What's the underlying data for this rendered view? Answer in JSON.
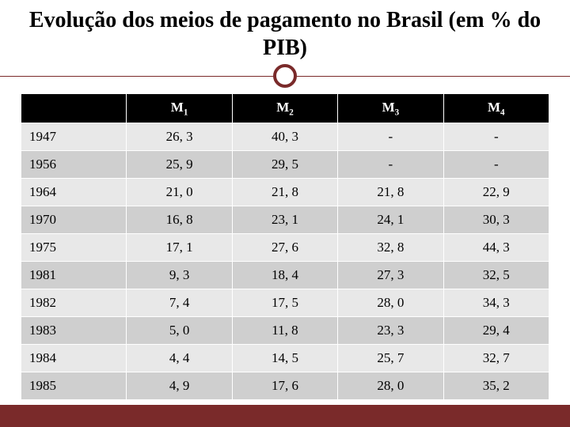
{
  "title": "Evolução dos meios de pagamento no Brasil (em % do PIB)",
  "table": {
    "type": "table",
    "columns": [
      "",
      "M1",
      "M2",
      "M3",
      "M4"
    ],
    "column_subscripts": [
      "",
      "1",
      "2",
      "3",
      "4"
    ],
    "column_prefix": [
      "",
      "M",
      "M",
      "M",
      "M"
    ],
    "col_widths_pct": [
      20,
      20,
      20,
      20,
      20
    ],
    "header_bg": "#000000",
    "header_fg": "#ffffff",
    "row_bg_odd": "#e8e8e8",
    "row_bg_even": "#cfcfcf",
    "border_color": "#ffffff",
    "font_family": "Georgia",
    "cell_fontsize_pt": 13,
    "rows": [
      {
        "year": "1947",
        "m1": "26, 3",
        "m2": "40, 3",
        "m3": "-",
        "m4": "-"
      },
      {
        "year": "1956",
        "m1": "25, 9",
        "m2": "29, 5",
        "m3": "-",
        "m4": "-"
      },
      {
        "year": "1964",
        "m1": "21, 0",
        "m2": "21, 8",
        "m3": "21, 8",
        "m4": "22, 9"
      },
      {
        "year": "1970",
        "m1": "16, 8",
        "m2": "23, 1",
        "m3": "24, 1",
        "m4": "30, 3"
      },
      {
        "year": "1975",
        "m1": "17, 1",
        "m2": "27, 6",
        "m3": "32, 8",
        "m4": "44, 3"
      },
      {
        "year": "1981",
        "m1": "9, 3",
        "m2": "18, 4",
        "m3": "27, 3",
        "m4": "32, 5"
      },
      {
        "year": "1982",
        "m1": "7, 4",
        "m2": "17, 5",
        "m3": "28, 0",
        "m4": "34, 3"
      },
      {
        "year": "1983",
        "m1": "5, 0",
        "m2": "11, 8",
        "m3": "23, 3",
        "m4": "29, 4"
      },
      {
        "year": "1984",
        "m1": "4, 4",
        "m2": "14, 5",
        "m3": "25, 7",
        "m4": "32, 7"
      },
      {
        "year": "1985",
        "m1": "4, 9",
        "m2": "17, 6",
        "m3": "28, 0",
        "m4": "35, 2"
      }
    ]
  },
  "theme": {
    "accent_color": "#7a2a2a",
    "background_color": "#ffffff",
    "title_fontsize_pt": 21,
    "title_color": "#000000",
    "footer_bar_color": "#7a2a2a"
  }
}
